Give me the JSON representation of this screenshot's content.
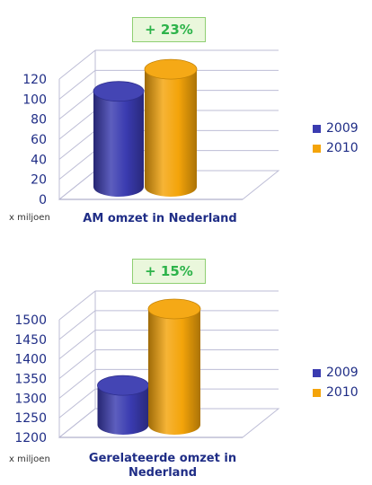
{
  "chart_data": [
    {
      "type": "bar",
      "badge": "+ 23%",
      "unit_label": "x miljoen",
      "title": "AM omzet in Nederland",
      "categories": [
        "AM omzet in Nederland"
      ],
      "series": [
        {
          "name": "2009",
          "values": [
            97
          ]
        },
        {
          "name": "2010",
          "values": [
            119
          ]
        }
      ],
      "ylim": [
        0,
        120
      ],
      "yticks": [
        0,
        20,
        40,
        60,
        80,
        100,
        120
      ],
      "grid": true,
      "legend": "right",
      "colors": {
        "2009": "#3a3bb0",
        "2010": "#f4a40a"
      }
    },
    {
      "type": "bar",
      "badge": "+ 15%",
      "unit_label": "x miljoen",
      "title": "Gerelateerde omzet in Nederland",
      "categories": [
        "Gerelateerde omzet in Nederland"
      ],
      "series": [
        {
          "name": "2009",
          "values": [
            1305
          ]
        },
        {
          "name": "2010",
          "values": [
            1500
          ]
        }
      ],
      "ylim": [
        1200,
        1500
      ],
      "yticks": [
        1200,
        1250,
        1300,
        1350,
        1400,
        1450,
        1500
      ],
      "grid": true,
      "legend": "right",
      "colors": {
        "2009": "#3a3bb0",
        "2010": "#f4a40a"
      }
    }
  ]
}
